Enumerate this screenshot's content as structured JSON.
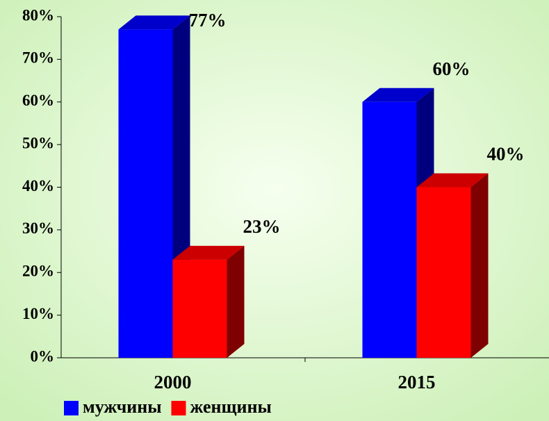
{
  "chart_data": {
    "type": "bar3d",
    "categories": [
      "2000",
      "2015"
    ],
    "series": [
      {
        "name": "мужчины",
        "color": "#0000ff",
        "values": [
          77,
          60
        ],
        "value_labels": [
          "77%",
          "60%"
        ]
      },
      {
        "name": "женщины",
        "color": "#ff0000",
        "values": [
          23,
          40
        ],
        "value_labels": [
          "23%",
          "40%"
        ]
      }
    ],
    "ylim": [
      0,
      80
    ],
    "yticks": [
      {
        "value": 0,
        "label": "0%"
      },
      {
        "value": 10,
        "label": "10%"
      },
      {
        "value": 20,
        "label": "20%"
      },
      {
        "value": 30,
        "label": "30%"
      },
      {
        "value": 40,
        "label": "40%"
      },
      {
        "value": 50,
        "label": "50%"
      },
      {
        "value": 60,
        "label": "60%"
      },
      {
        "value": 70,
        "label": "70%"
      },
      {
        "value": 80,
        "label": "80%"
      }
    ],
    "legend": "bottom-left"
  }
}
